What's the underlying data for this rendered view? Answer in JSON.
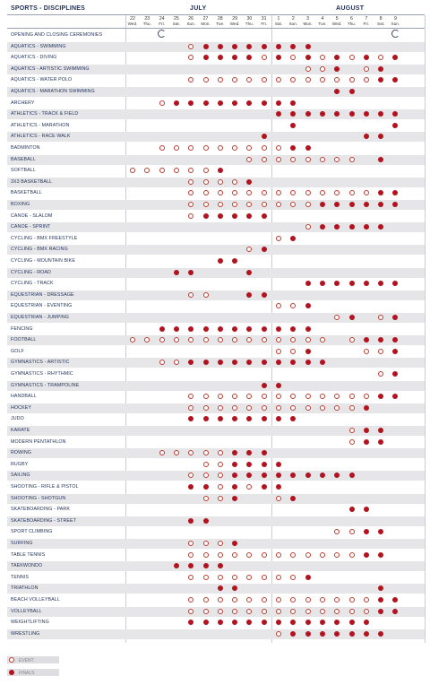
{
  "header": {
    "title": "SPORTS - DISCIPLINES",
    "months": [
      "JULY",
      "AUGUST"
    ]
  },
  "days": [
    {
      "d": "22",
      "w": "Wed."
    },
    {
      "d": "23",
      "w": "Thu."
    },
    {
      "d": "24",
      "w": "Fri."
    },
    {
      "d": "25",
      "w": "Sat."
    },
    {
      "d": "26",
      "w": "Sun."
    },
    {
      "d": "27",
      "w": "Mon."
    },
    {
      "d": "28",
      "w": "Tue."
    },
    {
      "d": "29",
      "w": "Wed."
    },
    {
      "d": "30",
      "w": "Thu."
    },
    {
      "d": "31",
      "w": "Fri."
    },
    {
      "d": "1",
      "w": "Sat."
    },
    {
      "d": "2",
      "w": "Sun."
    },
    {
      "d": "3",
      "w": "Mon."
    },
    {
      "d": "4",
      "w": "Tue."
    },
    {
      "d": "5",
      "w": "Wed."
    },
    {
      "d": "6",
      "w": "Thu."
    },
    {
      "d": "7",
      "w": "Fri."
    },
    {
      "d": "8",
      "w": "Sat."
    },
    {
      "d": "9",
      "w": "Sun."
    }
  ],
  "rows": [
    {
      "name": "OPENING AND CLOSING CEREMONIES",
      "c": "..C...............C"
    },
    {
      "name": "AQUATICS - SWIMMING",
      "c": "....eFFFFFFFF......"
    },
    {
      "name": "AQUATICS - DIVING",
      "c": "....eFFFFeFeFeFeFeF"
    },
    {
      "name": "AQUATICS - ARTISTIC SWIMMING",
      "c": "............eeF.eF."
    },
    {
      "name": "AQUATICS - WATER POLO",
      "c": "....eeeeeeeeeeeeeFF"
    },
    {
      "name": "AQUATICS - MARATHON SWIMMING",
      "c": "..............FF..."
    },
    {
      "name": "ARCHERY",
      "c": "..eFFFFFFFFF......."
    },
    {
      "name": "ATHLETICS - TRACK & FIELD",
      "c": "..........FFFFFFFFF"
    },
    {
      "name": "ATHLETICS - MARATHON",
      "c": "...........F......F"
    },
    {
      "name": "ATHLETICS - RACE WALK",
      "c": ".........F......FF."
    },
    {
      "name": "BADMINTON",
      "c": "..eeeeeeeeeFF......"
    },
    {
      "name": "BASEBALL",
      "c": "........eeeeeeee.F."
    },
    {
      "name": "SOFTBALL",
      "c": "eeeeeeF............"
    },
    {
      "name": "3X3 BASKETBALL",
      "c": "....eeeeF.........."
    },
    {
      "name": "BASKETBALL",
      "c": "....eeeeeeeeeeeeeFF"
    },
    {
      "name": "BOXING",
      "c": "....eeeeeeeeeFFFFFF"
    },
    {
      "name": "CANOE - SLALOM",
      "c": "....eFFFFF........."
    },
    {
      "name": "CANOE - SPRINT",
      "c": "............eFFFFF."
    },
    {
      "name": "CYCLING - BMX FREESTYLE",
      "c": "..........eF......."
    },
    {
      "name": "CYCLING - BMX RACING",
      "c": "........eF........."
    },
    {
      "name": "CYCLING - MOUNTAIN BIKE",
      "c": "......FF..........."
    },
    {
      "name": "CYCLING - ROAD",
      "c": "...FF...F.........."
    },
    {
      "name": "CYCLING - TRACK",
      "c": "............FFFFFFF"
    },
    {
      "name": "EQUESTRIAN - DRESSAGE",
      "c": "....ee..FF........."
    },
    {
      "name": "EQUESTRIAN - EVENTING",
      "c": "..........eeF......"
    },
    {
      "name": "EQUESTRIAN - JUMPING",
      "c": "..............eF.eF"
    },
    {
      "name": "FENCING",
      "c": "..FFFFFFFFFFF......"
    },
    {
      "name": "FOOTBALL",
      "c": "eeeeeeeeeeeeee.eFFF"
    },
    {
      "name": "GOLF",
      "c": "..........eeF...eeF"
    },
    {
      "name": "GYMNASTICS - ARTISTIC",
      "c": "..eeFFFFFFFFFF....."
    },
    {
      "name": "GYMNASTICS - RHYTHMIC",
      "c": ".................eF"
    },
    {
      "name": "GYMNASTICS - TRAMPOLINE",
      "c": ".........FF........"
    },
    {
      "name": "HANDBALL",
      "c": "....eeeeeeeeeeeeeFF"
    },
    {
      "name": "HOCKEY",
      "c": "....eeeeeeeeeeeeF.."
    },
    {
      "name": "JUDO",
      "c": "....FFFFFFFF......."
    },
    {
      "name": "KARATE",
      "c": "...............eFF."
    },
    {
      "name": "MODERN PENTATHLON",
      "c": "...............eFF."
    },
    {
      "name": "ROWING",
      "c": "..eeeeeFFF........."
    },
    {
      "name": "RUGBY",
      "c": ".....eeFFFF........"
    },
    {
      "name": "SAILING",
      "c": "....eeeFFFFFFFFF..."
    },
    {
      "name": "SHOOTING - RIFLE & PISTOL",
      "c": "....FFeFeFF........"
    },
    {
      "name": "SHOOTING - SHOTGUN",
      "c": ".....eeF..eF......."
    },
    {
      "name": "SKATEBOARDING - PARK",
      "c": "...............FF.."
    },
    {
      "name": "SKATEBOARDING - STREET",
      "c": "....FF............."
    },
    {
      "name": "SPORT CLIMBING",
      "c": "..............eeFF."
    },
    {
      "name": "SURFING",
      "c": "....eeeF..........."
    },
    {
      "name": "TABLE TENNIS",
      "c": "....eeeeeeeeeeeeFF."
    },
    {
      "name": "TAEKWONDO",
      "c": "...FFFF............"
    },
    {
      "name": "TENNIS",
      "c": "....eeeeeeeeF......"
    },
    {
      "name": "TRIATHLON",
      "c": "......FF.........F."
    },
    {
      "name": "BEACH VOLLEYBALL",
      "c": "....eeeeeeeeeeeeeFF"
    },
    {
      "name": "VOLLEYBALL",
      "c": "....eeeeeeeeeeeeeFF"
    },
    {
      "name": "WEIGHTLIFTING",
      "c": "....FFFFFFFFFFFFF.."
    },
    {
      "name": "WRESTLING",
      "c": "..........eFFFFFFF."
    }
  ],
  "legend": {
    "event": "EVENT",
    "finals": "FINALS"
  },
  "colors": {
    "title": "#1f2f55",
    "final": "#b3121f",
    "event": "#c0392b",
    "stripe": "#e6e6e9"
  }
}
